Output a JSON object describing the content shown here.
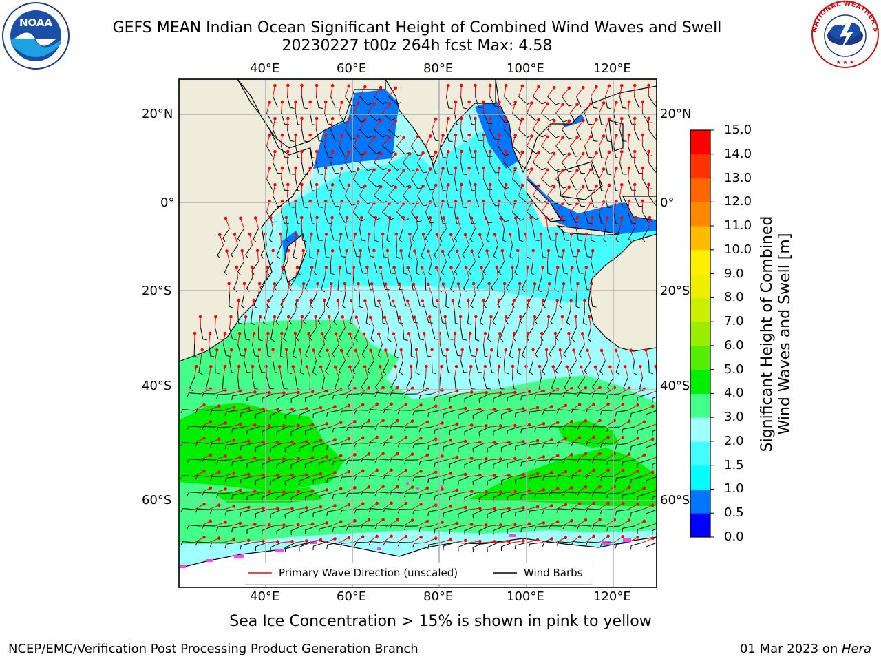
{
  "header": {
    "title_line1": "GEFS MEAN Indian Ocean Significant Height of Combined Wind Waves and Swell",
    "title_line2": "20230227 t00z 264h fcst   Max: 4.58"
  },
  "logos": {
    "noaa_text": "NOAA",
    "nws_text": "NATIONAL WEATHER SERVICE"
  },
  "map": {
    "lon_labels": [
      "40°E",
      "60°E",
      "80°E",
      "100°E",
      "120°E"
    ],
    "lat_labels": [
      "20°N",
      "0°",
      "20°S",
      "40°S",
      "60°S"
    ],
    "lon_range": [
      20,
      130
    ],
    "lat_range": [
      -77,
      28
    ],
    "colors": {
      "land": "#efecdc",
      "sea_ice": "#ff44ff",
      "wave_arrow": "#ff0000",
      "wind_barb": "#000000"
    }
  },
  "colorbar": {
    "ticks": [
      "0.0",
      "0.5",
      "1.0",
      "1.5",
      "2.0",
      "3.0",
      "4.0",
      "5.0",
      "6.0",
      "7.0",
      "8.0",
      "9.0",
      "10.0",
      "11.0",
      "12.0",
      "13.0",
      "14.0",
      "15.0"
    ],
    "colors": [
      "#0000ff",
      "#0077ff",
      "#00ffff",
      "#44ffff",
      "#a0ffff",
      "#44ff88",
      "#00ee00",
      "#55ee00",
      "#99ee00",
      "#ccee00",
      "#eeee00",
      "#ffee00",
      "#ffbb00",
      "#ff8800",
      "#ff6600",
      "#ff3300",
      "#ff0000"
    ],
    "label": "Significant Height of Combined\nWind Waves and Swell [m]"
  },
  "legend": {
    "items": [
      {
        "label": "Primary Wave Direction (unscaled)",
        "color": "#ff0000"
      },
      {
        "label": "Wind Barbs",
        "color": "#000000"
      }
    ]
  },
  "caption": "Sea Ice Concentration > 15% is shown in pink to yellow",
  "footer": {
    "left": "NCEP/EMC/Verification Post Processing Product Generation Branch",
    "right_prefix": "01 Mar 2023 on ",
    "right_host": "Hera"
  }
}
